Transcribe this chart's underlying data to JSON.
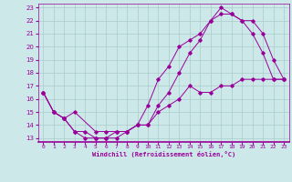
{
  "xlabel": "Windchill (Refroidissement éolien,°C)",
  "line_color": "#990099",
  "bg_color": "#cce8e8",
  "grid_color": "#aacccc",
  "xlim": [
    -0.5,
    23.5
  ],
  "ylim": [
    12.7,
    23.3
  ],
  "xticks": [
    0,
    1,
    2,
    3,
    4,
    5,
    6,
    7,
    8,
    9,
    10,
    11,
    12,
    13,
    14,
    15,
    16,
    17,
    18,
    19,
    20,
    21,
    22,
    23
  ],
  "yticks": [
    13,
    14,
    15,
    16,
    17,
    18,
    19,
    20,
    21,
    22,
    23
  ],
  "line1_x": [
    0,
    1,
    2,
    3,
    5,
    6,
    7,
    8,
    9,
    10,
    11,
    12,
    13,
    14,
    15,
    16,
    17,
    18,
    19,
    20,
    21,
    22,
    23
  ],
  "line1_y": [
    16.5,
    15.0,
    14.5,
    15.0,
    13.5,
    13.5,
    13.5,
    13.5,
    14.0,
    14.0,
    15.5,
    16.5,
    18.0,
    19.5,
    20.5,
    22.0,
    22.5,
    22.5,
    22.0,
    22.0,
    21.0,
    19.0,
    17.5
  ],
  "line2_x": [
    0,
    1,
    2,
    3,
    4,
    5,
    6,
    7,
    8,
    9,
    10,
    11,
    12,
    13,
    14,
    15,
    16,
    17,
    18,
    19,
    20,
    21,
    22,
    23
  ],
  "line2_y": [
    16.5,
    15.0,
    14.5,
    13.5,
    13.0,
    13.0,
    13.0,
    13.0,
    13.5,
    14.0,
    15.5,
    17.5,
    18.5,
    20.0,
    20.5,
    21.0,
    22.0,
    23.0,
    22.5,
    22.0,
    21.0,
    19.5,
    17.5,
    17.5
  ],
  "line3_x": [
    0,
    1,
    2,
    3,
    4,
    5,
    6,
    7,
    8,
    9,
    10,
    11,
    12,
    13,
    14,
    15,
    16,
    17,
    18,
    19,
    20,
    21,
    22,
    23
  ],
  "line3_y": [
    16.5,
    15.0,
    14.5,
    13.5,
    13.5,
    13.0,
    13.0,
    13.5,
    13.5,
    14.0,
    14.0,
    15.0,
    15.5,
    16.0,
    17.0,
    16.5,
    16.5,
    17.0,
    17.0,
    17.5,
    17.5,
    17.5,
    17.5,
    17.5
  ]
}
